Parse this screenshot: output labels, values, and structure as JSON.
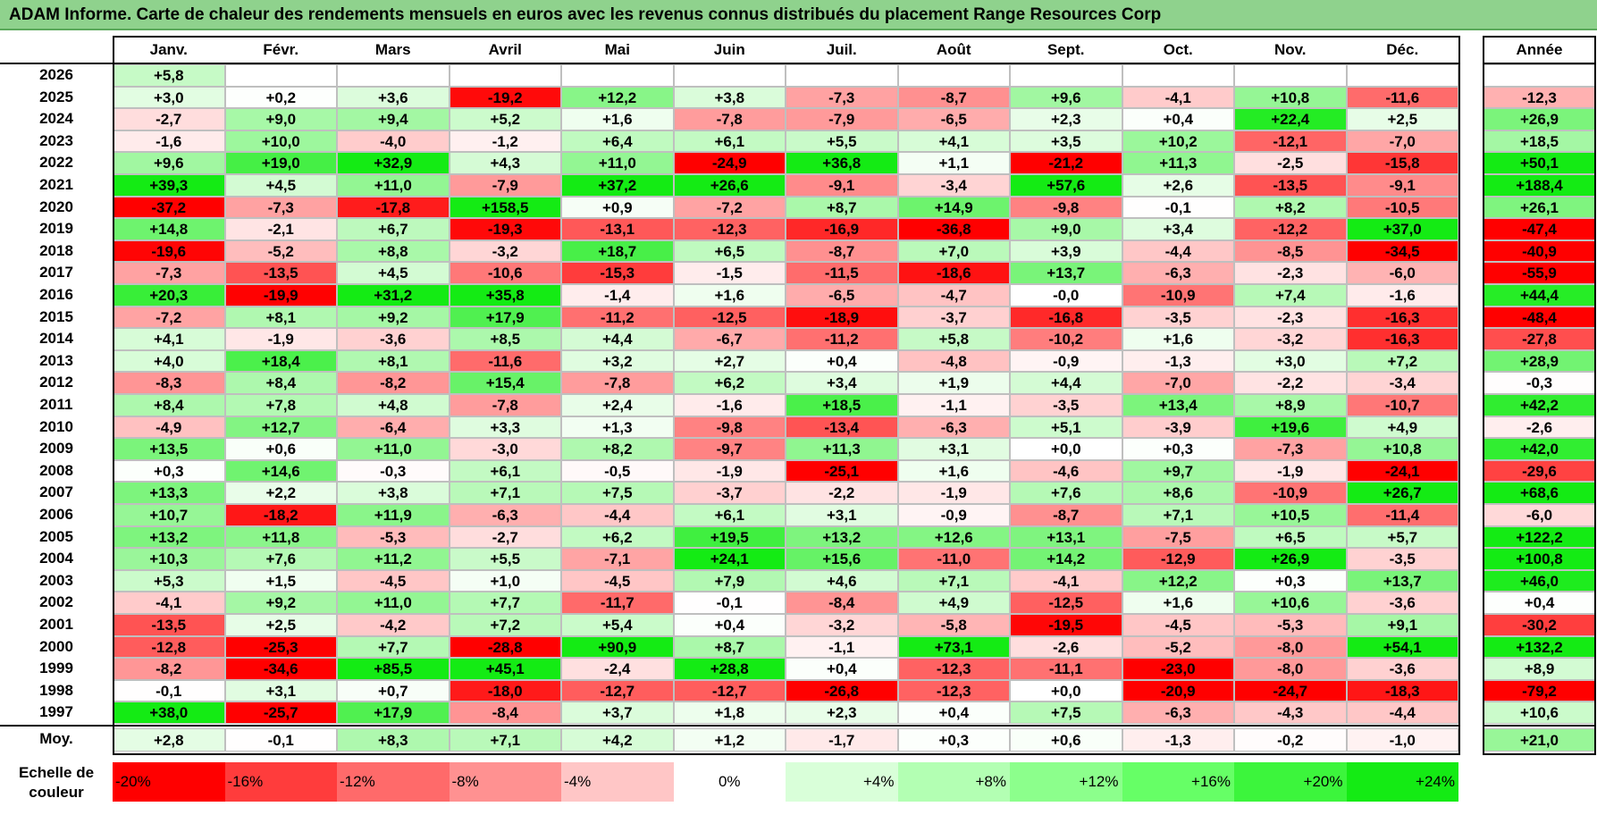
{
  "title": "ADAM Informe. Carte de chaleur des rendements mensuels en euros avec les revenus connus distribués du placement Range Resources Corp",
  "chart_data": {
    "type": "heatmap",
    "title": "ADAM Informe. Carte de chaleur des rendements mensuels en euros avec les revenus connus distribués du placement Range Resources Corp",
    "months": [
      "Janv.",
      "Févr.",
      "Mars",
      "Avril",
      "Mai",
      "Juin",
      "Juil.",
      "Août",
      "Sept.",
      "Oct.",
      "Nov.",
      "Déc."
    ],
    "year_header": "Année",
    "rows": [
      {
        "year": "2026",
        "values": [
          "+5,8",
          "",
          "",
          "",
          "",
          "",
          "",
          "",
          "",
          "",
          "",
          ""
        ],
        "annual": ""
      },
      {
        "year": "2025",
        "values": [
          "+3,0",
          "+0,2",
          "+3,6",
          "-19,2",
          "+12,2",
          "+3,8",
          "-7,3",
          "-8,7",
          "+9,6",
          "-4,1",
          "+10,8",
          "-11,6"
        ],
        "annual": "-12,3"
      },
      {
        "year": "2024",
        "values": [
          "-2,7",
          "+9,0",
          "+9,4",
          "+5,2",
          "+1,6",
          "-7,8",
          "-7,9",
          "-6,5",
          "+2,3",
          "+0,4",
          "+22,4",
          "+2,5"
        ],
        "annual": "+26,9"
      },
      {
        "year": "2023",
        "values": [
          "-1,6",
          "+10,0",
          "-4,0",
          "-1,2",
          "+6,4",
          "+6,1",
          "+5,5",
          "+4,1",
          "+3,5",
          "+10,2",
          "-12,1",
          "-7,0"
        ],
        "annual": "+18,5"
      },
      {
        "year": "2022",
        "values": [
          "+9,6",
          "+19,0",
          "+32,9",
          "+4,3",
          "+11,0",
          "-24,9",
          "+36,8",
          "+1,1",
          "-21,2",
          "+11,3",
          "-2,5",
          "-15,8"
        ],
        "annual": "+50,1"
      },
      {
        "year": "2021",
        "values": [
          "+39,3",
          "+4,5",
          "+11,0",
          "-7,9",
          "+37,2",
          "+26,6",
          "-9,1",
          "-3,4",
          "+57,6",
          "+2,6",
          "-13,5",
          "-9,1"
        ],
        "annual": "+188,4"
      },
      {
        "year": "2020",
        "values": [
          "-37,2",
          "-7,3",
          "-17,8",
          "+158,5",
          "+0,9",
          "-7,2",
          "+8,7",
          "+14,9",
          "-9,8",
          "-0,1",
          "+8,2",
          "-10,5"
        ],
        "annual": "+26,1"
      },
      {
        "year": "2019",
        "values": [
          "+14,8",
          "-2,1",
          "+6,7",
          "-19,3",
          "-13,1",
          "-12,3",
          "-16,9",
          "-36,8",
          "+9,0",
          "+3,4",
          "-12,2",
          "+37,0"
        ],
        "annual": "-47,4"
      },
      {
        "year": "2018",
        "values": [
          "-19,6",
          "-5,2",
          "+8,8",
          "-3,2",
          "+18,7",
          "+6,5",
          "-8,7",
          "+7,0",
          "+3,9",
          "-4,4",
          "-8,5",
          "-34,5"
        ],
        "annual": "-40,9"
      },
      {
        "year": "2017",
        "values": [
          "-7,3",
          "-13,5",
          "+4,5",
          "-10,6",
          "-15,3",
          "-1,5",
          "-11,5",
          "-18,6",
          "+13,7",
          "-6,3",
          "-2,3",
          "-6,0"
        ],
        "annual": "-55,9"
      },
      {
        "year": "2016",
        "values": [
          "+20,3",
          "-19,9",
          "+31,2",
          "+35,8",
          "-1,4",
          "+1,6",
          "-6,5",
          "-4,7",
          "-0,0",
          "-10,9",
          "+7,4",
          "-1,6"
        ],
        "annual": "+44,4"
      },
      {
        "year": "2015",
        "values": [
          "-7,2",
          "+8,1",
          "+9,2",
          "+17,9",
          "-11,2",
          "-12,5",
          "-18,9",
          "-3,7",
          "-16,8",
          "-3,5",
          "-2,3",
          "-16,3"
        ],
        "annual": "-48,4"
      },
      {
        "year": "2014",
        "values": [
          "+4,1",
          "-1,9",
          "-3,6",
          "+8,5",
          "+4,4",
          "-6,7",
          "-11,2",
          "+5,8",
          "-10,2",
          "+1,6",
          "-3,2",
          "-16,3"
        ],
        "annual": "-27,8"
      },
      {
        "year": "2013",
        "values": [
          "+4,0",
          "+18,4",
          "+8,1",
          "-11,6",
          "+3,2",
          "+2,7",
          "+0,4",
          "-4,8",
          "-0,9",
          "-1,3",
          "+3,0",
          "+7,2"
        ],
        "annual": "+28,9"
      },
      {
        "year": "2012",
        "values": [
          "-8,3",
          "+8,4",
          "-8,2",
          "+15,4",
          "-7,8",
          "+6,2",
          "+3,4",
          "+1,9",
          "+4,4",
          "-7,0",
          "-2,2",
          "-3,4"
        ],
        "annual": "-0,3"
      },
      {
        "year": "2011",
        "values": [
          "+8,4",
          "+7,8",
          "+4,8",
          "-7,8",
          "+2,4",
          "-1,6",
          "+18,5",
          "-1,1",
          "-3,5",
          "+13,4",
          "+8,9",
          "-10,7"
        ],
        "annual": "+42,2"
      },
      {
        "year": "2010",
        "values": [
          "-4,9",
          "+12,7",
          "-6,4",
          "+3,3",
          "+1,3",
          "-9,8",
          "-13,4",
          "-6,3",
          "+5,1",
          "-3,9",
          "+19,6",
          "+4,9"
        ],
        "annual": "-2,6"
      },
      {
        "year": "2009",
        "values": [
          "+13,5",
          "+0,6",
          "+11,0",
          "-3,0",
          "+8,2",
          "-9,7",
          "+11,3",
          "+3,1",
          "+0,0",
          "+0,3",
          "-7,3",
          "+10,8"
        ],
        "annual": "+42,0"
      },
      {
        "year": "2008",
        "values": [
          "+0,3",
          "+14,6",
          "-0,3",
          "+6,1",
          "-0,5",
          "-1,9",
          "-25,1",
          "+1,6",
          "-4,6",
          "+9,7",
          "-1,9",
          "-24,1"
        ],
        "annual": "-29,6"
      },
      {
        "year": "2007",
        "values": [
          "+13,3",
          "+2,2",
          "+3,8",
          "+7,1",
          "+7,5",
          "-3,7",
          "-2,2",
          "-1,9",
          "+7,6",
          "+8,6",
          "-10,9",
          "+26,7"
        ],
        "annual": "+68,6"
      },
      {
        "year": "2006",
        "values": [
          "+10,7",
          "-18,2",
          "+11,9",
          "-6,3",
          "-4,4",
          "+6,1",
          "+3,1",
          "-0,9",
          "-8,7",
          "+7,1",
          "+10,5",
          "-11,4"
        ],
        "annual": "-6,0"
      },
      {
        "year": "2005",
        "values": [
          "+13,2",
          "+11,8",
          "-5,3",
          "-2,7",
          "+6,2",
          "+19,5",
          "+13,2",
          "+12,6",
          "+13,1",
          "-7,5",
          "+6,5",
          "+5,7"
        ],
        "annual": "+122,2"
      },
      {
        "year": "2004",
        "values": [
          "+10,3",
          "+7,6",
          "+11,2",
          "+5,5",
          "-7,1",
          "+24,1",
          "+15,6",
          "-11,0",
          "+14,2",
          "-12,9",
          "+26,9",
          "-3,5"
        ],
        "annual": "+100,8"
      },
      {
        "year": "2003",
        "values": [
          "+5,3",
          "+1,5",
          "-4,5",
          "+1,0",
          "-4,5",
          "+7,9",
          "+4,6",
          "+7,1",
          "-4,1",
          "+12,2",
          "+0,3",
          "+13,7"
        ],
        "annual": "+46,0"
      },
      {
        "year": "2002",
        "values": [
          "-4,1",
          "+9,2",
          "+11,0",
          "+7,7",
          "-11,7",
          "-0,1",
          "-8,4",
          "+4,9",
          "-12,5",
          "+1,6",
          "+10,6",
          "-3,6"
        ],
        "annual": "+0,4"
      },
      {
        "year": "2001",
        "values": [
          "-13,5",
          "+2,5",
          "-4,2",
          "+7,2",
          "+5,4",
          "+0,4",
          "-3,2",
          "-5,8",
          "-19,5",
          "-4,5",
          "-5,3",
          "+9,1"
        ],
        "annual": "-30,2"
      },
      {
        "year": "2000",
        "values": [
          "-12,8",
          "-25,3",
          "+7,7",
          "-28,8",
          "+90,9",
          "+8,7",
          "-1,1",
          "+73,1",
          "-2,6",
          "-5,2",
          "-8,0",
          "+54,1"
        ],
        "annual": "+132,2"
      },
      {
        "year": "1999",
        "values": [
          "-8,2",
          "-34,6",
          "+85,5",
          "+45,1",
          "-2,4",
          "+28,8",
          "+0,4",
          "-12,3",
          "-11,1",
          "-23,0",
          "-8,0",
          "-3,6"
        ],
        "annual": "+8,9"
      },
      {
        "year": "1998",
        "values": [
          "-0,1",
          "+3,1",
          "+0,7",
          "-18,0",
          "-12,7",
          "-12,7",
          "-26,8",
          "-12,3",
          "+0,0",
          "-20,9",
          "-24,7",
          "-18,3"
        ],
        "annual": "-79,2"
      },
      {
        "year": "1997",
        "values": [
          "+38,0",
          "-25,7",
          "+17,9",
          "-8,4",
          "+3,7",
          "+1,8",
          "+2,3",
          "+0,4",
          "+7,5",
          "-6,3",
          "-4,3",
          "-4,4"
        ],
        "annual": "+10,6"
      }
    ],
    "average": {
      "label": "Moy.",
      "values": [
        "+2,8",
        "-0,1",
        "+8,3",
        "+7,1",
        "+4,2",
        "+1,2",
        "-1,7",
        "+0,3",
        "+0,6",
        "-1,3",
        "-0,2",
        "-1,0"
      ],
      "annual": "+21,0"
    },
    "color_scale": {
      "label": "Echelle de couleur",
      "steps": [
        "-20%",
        "-16%",
        "-12%",
        "-8%",
        "-4%",
        "0%",
        "+4%",
        "+8%",
        "+12%",
        "+16%",
        "+20%",
        "+24%"
      ],
      "colors": [
        "#ff0000",
        "#ff3c3c",
        "#ff6a6a",
        "#ff9191",
        "#ffc6c6",
        "#ffffff",
        "#d9ffd9",
        "#b3ffb3",
        "#8cff8c",
        "#66ff66",
        "#3cf53c",
        "#14eb14"
      ]
    }
  }
}
